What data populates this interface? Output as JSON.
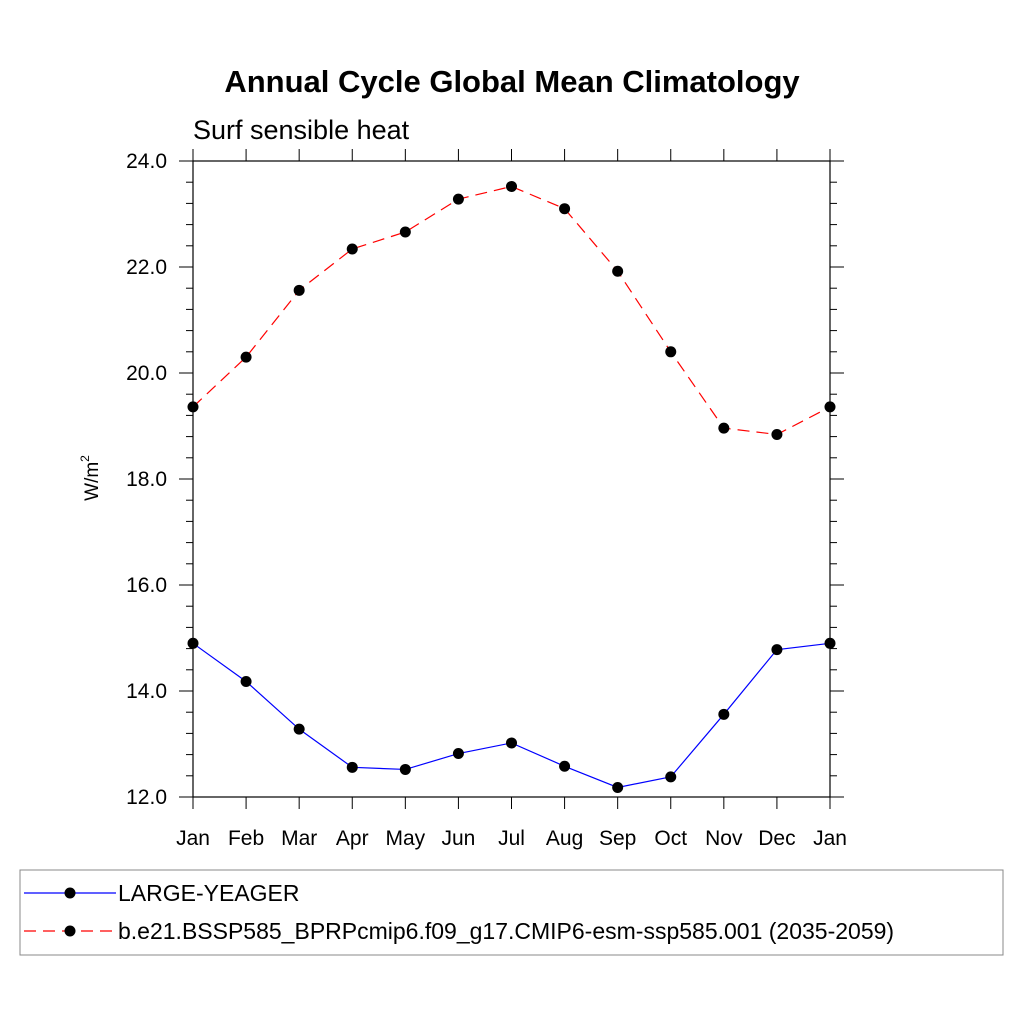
{
  "chart_data": {
    "type": "line",
    "title": "Annual Cycle Global Mean Climatology",
    "subtitle": "Surf sensible heat",
    "ylabel_base": "W/m",
    "ylabel_sup": "2",
    "xlabel": "",
    "categories": [
      "Jan",
      "Feb",
      "Mar",
      "Apr",
      "May",
      "Jun",
      "Jul",
      "Aug",
      "Sep",
      "Oct",
      "Nov",
      "Dec",
      "Jan"
    ],
    "ylim": [
      12.0,
      24.0
    ],
    "yticks": [
      "12.0",
      "14.0",
      "16.0",
      "18.0",
      "20.0",
      "22.0",
      "24.0"
    ],
    "series": [
      {
        "name": "LARGE-YEAGER",
        "color": "#0000ff",
        "dash": "solid",
        "values": [
          14.9,
          14.18,
          13.28,
          12.56,
          12.52,
          12.82,
          13.02,
          12.58,
          12.18,
          12.38,
          13.56,
          14.78,
          14.9
        ]
      },
      {
        "name": "b.e21.BSSP585_BPRPcmip6.f09_g17.CMIP6-esm-ssp585.001 (2035-2059)",
        "color": "#ff0000",
        "dash": "dashed",
        "values": [
          19.36,
          20.3,
          21.56,
          22.34,
          22.66,
          23.28,
          23.52,
          23.1,
          21.92,
          20.4,
          18.96,
          18.84,
          19.36
        ]
      }
    ],
    "grid": false,
    "legend_position": "bottom"
  }
}
